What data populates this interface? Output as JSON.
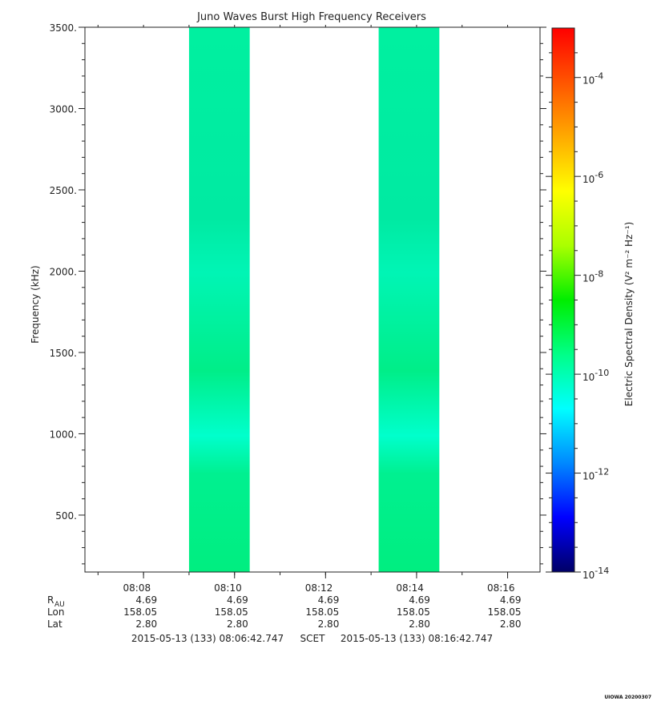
{
  "chart_data": {
    "type": "heatmap",
    "title": "Juno Waves Burst High Frequency Receivers",
    "ylabel": "Frequency (kHz)",
    "ylim": [
      150,
      3500
    ],
    "y_ticks": [
      "500.",
      "1000.",
      "1500.",
      "2000.",
      "2500.",
      "3000.",
      "3500."
    ],
    "y_tick_values": [
      500,
      1000,
      1500,
      2000,
      2500,
      3000,
      3500
    ],
    "x_range": [
      "08:06:42.747",
      "08:16:42.747"
    ],
    "x_ticks": [
      "08:08",
      "08:10",
      "08:12",
      "08:14",
      "08:16"
    ],
    "data_bursts": [
      {
        "start": "08:09:00",
        "end": "08:10:20",
        "fmin": 150,
        "fmax": 3500,
        "log10_density": -10.3
      },
      {
        "start": "08:13:10",
        "end": "08:14:30",
        "fmin": 150,
        "fmax": 3500,
        "log10_density": -10.3
      }
    ],
    "colorbar": {
      "label": "Electric Spectral Density (V² m⁻² Hz⁻¹)",
      "range_log10": [
        -14,
        -3
      ],
      "ticks": [
        {
          "base": "10",
          "exp": "-4",
          "value": -4
        },
        {
          "base": "10",
          "exp": "-6",
          "value": -6
        },
        {
          "base": "10",
          "exp": "-8",
          "value": -8
        },
        {
          "base": "10",
          "exp": "-10",
          "value": -10
        },
        {
          "base": "10",
          "exp": "-12",
          "value": -12
        },
        {
          "base": "10",
          "exp": "-14",
          "value": -14
        }
      ],
      "colors": [
        "#000066",
        "#0000ff",
        "#0088ff",
        "#00ffff",
        "#00ff88",
        "#00ee00",
        "#aaff00",
        "#ffff00",
        "#ffaa00",
        "#ff5500",
        "#ff0000"
      ]
    },
    "ephemeris": {
      "rows": [
        {
          "label": "R",
          "sub": "AU",
          "values": [
            "4.69",
            "4.69",
            "4.69",
            "4.69",
            "4.69"
          ]
        },
        {
          "label": "Lon",
          "values": [
            "158.05",
            "158.05",
            "158.05",
            "158.05",
            "158.05"
          ]
        },
        {
          "label": "Lat",
          "values": [
            "2.80",
            "2.80",
            "2.80",
            "2.80",
            "2.80"
          ]
        }
      ]
    },
    "time_footer": {
      "start": "2015-05-13 (133) 08:06:42.747",
      "scet": "SCET",
      "end": "2015-05-13 (133) 08:16:42.747"
    }
  },
  "stamp": "UIOWA 20200307"
}
